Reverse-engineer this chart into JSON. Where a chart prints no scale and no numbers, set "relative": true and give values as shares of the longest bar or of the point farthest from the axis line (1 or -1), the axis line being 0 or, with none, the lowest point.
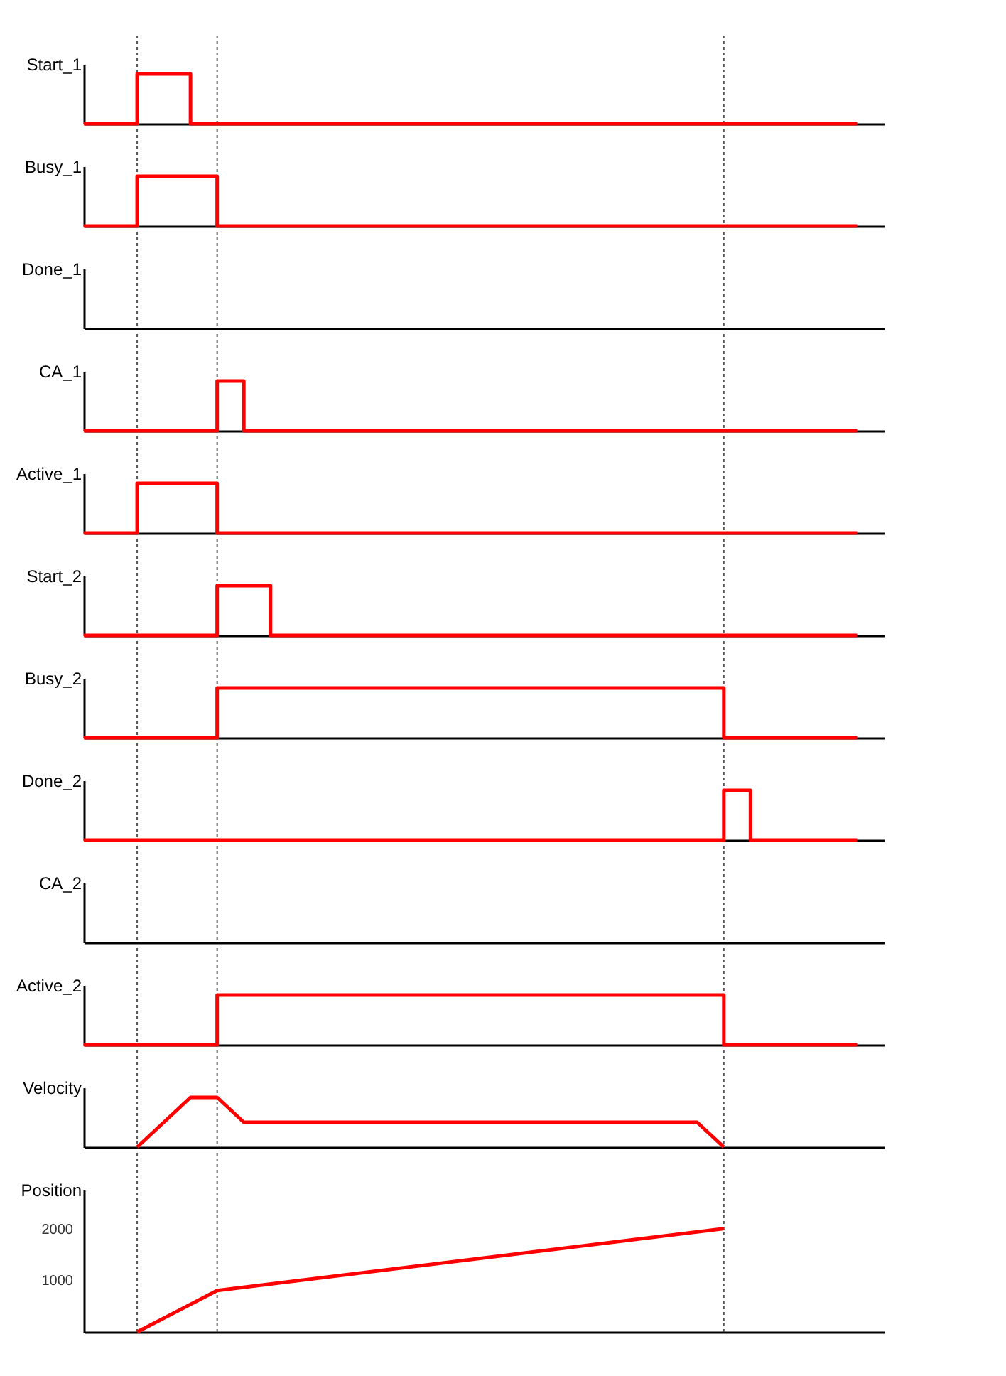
{
  "chart_data": [
    {
      "type": "step",
      "ylabel": "Start_1",
      "relative": true,
      "tick_labels": false,
      "grid": "x",
      "categories": [
        null,
        null,
        null,
        null,
        null,
        null,
        null,
        null,
        null,
        null,
        null,
        null,
        null,
        null,
        null,
        null,
        null,
        null,
        null,
        null,
        null,
        null,
        null,
        null,
        null,
        null,
        null,
        null,
        null,
        null
      ],
      "color": "#ff0000",
      "values": [
        0,
        0,
        1,
        1,
        0,
        0,
        0,
        0,
        0,
        0,
        0,
        0,
        0,
        0,
        0,
        0,
        0,
        0,
        0,
        0,
        0,
        0,
        0,
        0,
        0,
        0,
        0,
        0,
        0,
        0
      ]
    },
    {
      "type": "step",
      "ylabel": "Busy_1",
      "relative": true,
      "tick_labels": false,
      "grid": "x",
      "categories": [
        null,
        null,
        null,
        null,
        null,
        null,
        null,
        null,
        null,
        null,
        null,
        null,
        null,
        null,
        null,
        null,
        null,
        null,
        null,
        null,
        null,
        null,
        null,
        null,
        null,
        null,
        null,
        null,
        null,
        null
      ],
      "color": "#ff0000",
      "values": [
        0,
        0,
        1,
        1,
        1,
        0,
        0,
        0,
        0,
        0,
        0,
        0,
        0,
        0,
        0,
        0,
        0,
        0,
        0,
        0,
        0,
        0,
        0,
        0,
        0,
        0,
        0,
        0,
        0,
        0
      ]
    },
    {
      "type": "other",
      "ylabel": "Done_1",
      "categories": [
        null,
        null,
        null,
        null,
        null,
        null,
        null,
        null,
        null,
        null,
        null,
        null,
        null,
        null,
        null,
        null,
        null,
        null,
        null,
        null,
        null,
        null,
        null,
        null,
        null,
        null,
        null,
        null,
        null,
        null
      ]
    },
    {
      "type": "step",
      "ylabel": "CA_1",
      "relative": true,
      "tick_labels": false,
      "grid": "x",
      "categories": [
        null,
        null,
        null,
        null,
        null,
        null,
        null,
        null,
        null,
        null,
        null,
        null,
        null,
        null,
        null,
        null,
        null,
        null,
        null,
        null,
        null,
        null,
        null,
        null,
        null,
        null,
        null,
        null,
        null,
        null
      ],
      "color": "#ff0000",
      "values": [
        0,
        0,
        0,
        0,
        0,
        1,
        0,
        0,
        0,
        0,
        0,
        0,
        0,
        0,
        0,
        0,
        0,
        0,
        0,
        0,
        0,
        0,
        0,
        0,
        0,
        0,
        0,
        0,
        0,
        0
      ]
    },
    {
      "type": "step",
      "ylabel": "Active_1",
      "relative": true,
      "tick_labels": false,
      "grid": "x",
      "categories": [
        null,
        null,
        null,
        null,
        null,
        null,
        null,
        null,
        null,
        null,
        null,
        null,
        null,
        null,
        null,
        null,
        null,
        null,
        null,
        null,
        null,
        null,
        null,
        null,
        null,
        null,
        null,
        null,
        null,
        null
      ],
      "color": "#ff0000",
      "values": [
        0,
        0,
        1,
        1,
        1,
        0,
        0,
        0,
        0,
        0,
        0,
        0,
        0,
        0,
        0,
        0,
        0,
        0,
        0,
        0,
        0,
        0,
        0,
        0,
        0,
        0,
        0,
        0,
        0,
        0
      ]
    },
    {
      "type": "step",
      "ylabel": "Start_2",
      "relative": true,
      "tick_labels": false,
      "grid": "x",
      "categories": [
        null,
        null,
        null,
        null,
        null,
        null,
        null,
        null,
        null,
        null,
        null,
        null,
        null,
        null,
        null,
        null,
        null,
        null,
        null,
        null,
        null,
        null,
        null,
        null,
        null,
        null,
        null,
        null,
        null,
        null
      ],
      "color": "#ff0000",
      "values": [
        0,
        0,
        0,
        0,
        0,
        1,
        1,
        0,
        0,
        0,
        0,
        0,
        0,
        0,
        0,
        0,
        0,
        0,
        0,
        0,
        0,
        0,
        0,
        0,
        0,
        0,
        0,
        0,
        0,
        0
      ]
    },
    {
      "type": "step",
      "ylabel": "Busy_2",
      "relative": true,
      "tick_labels": false,
      "grid": "x",
      "categories": [
        null,
        null,
        null,
        null,
        null,
        null,
        null,
        null,
        null,
        null,
        null,
        null,
        null,
        null,
        null,
        null,
        null,
        null,
        null,
        null,
        null,
        null,
        null,
        null,
        null,
        null,
        null,
        null,
        null,
        null
      ],
      "color": "#ff0000",
      "values": [
        0,
        0,
        0,
        0,
        0,
        1,
        1,
        1,
        1,
        1,
        1,
        1,
        1,
        1,
        1,
        1,
        1,
        1,
        1,
        1,
        1,
        1,
        1,
        1,
        0,
        0,
        0,
        0,
        0,
        0
      ]
    },
    {
      "type": "step",
      "ylabel": "Done_2",
      "relative": true,
      "tick_labels": false,
      "grid": "x",
      "categories": [
        null,
        null,
        null,
        null,
        null,
        null,
        null,
        null,
        null,
        null,
        null,
        null,
        null,
        null,
        null,
        null,
        null,
        null,
        null,
        null,
        null,
        null,
        null,
        null,
        null,
        null,
        null,
        null,
        null,
        null
      ],
      "color": "#ff0000",
      "values": [
        0,
        0,
        0,
        0,
        0,
        0,
        0,
        0,
        0,
        0,
        0,
        0,
        0,
        0,
        0,
        0,
        0,
        0,
        0,
        0,
        0,
        0,
        0,
        0,
        1,
        0,
        0,
        0,
        0,
        0
      ]
    },
    {
      "type": "other",
      "ylabel": "CA_2",
      "categories": [
        null,
        null,
        null,
        null,
        null,
        null,
        null,
        null,
        null,
        null,
        null,
        null,
        null,
        null,
        null,
        null,
        null,
        null,
        null,
        null,
        null,
        null,
        null,
        null,
        null,
        null,
        null,
        null,
        null,
        null
      ]
    },
    {
      "type": "step",
      "ylabel": "Active_2",
      "relative": true,
      "tick_labels": false,
      "grid": "x",
      "categories": [
        null,
        null,
        null,
        null,
        null,
        null,
        null,
        null,
        null,
        null,
        null,
        null,
        null,
        null,
        null,
        null,
        null,
        null,
        null,
        null,
        null,
        null,
        null,
        null,
        null,
        null,
        null,
        null,
        null,
        null
      ],
      "color": "#ff0000",
      "values": [
        0,
        0,
        0,
        0,
        0,
        1,
        1,
        1,
        1,
        1,
        1,
        1,
        1,
        1,
        1,
        1,
        1,
        1,
        1,
        1,
        1,
        1,
        1,
        1,
        0,
        0,
        0,
        0,
        0,
        0
      ]
    },
    {
      "type": "line",
      "ylabel": "Velocity",
      "relative": true,
      "tick_labels": false,
      "grid": "x",
      "categories": [
        null,
        null,
        null,
        null,
        null,
        null,
        null,
        null,
        null,
        null,
        null,
        null,
        null,
        null,
        null,
        null,
        null,
        null,
        null,
        null,
        null,
        null,
        null,
        null,
        null,
        null,
        null,
        null,
        null,
        null
      ],
      "color": "#ff0000",
      "values": [
        null,
        null,
        0,
        0.5,
        1,
        1,
        0.5,
        0.5,
        0.5,
        0.5,
        0.5,
        0.5,
        0.5,
        0.5,
        0.5,
        0.5,
        0.5,
        0.5,
        0.5,
        0.5,
        0.5,
        0.5,
        0.5,
        0.5,
        0,
        null,
        null,
        null,
        null,
        null
      ]
    },
    {
      "type": "line",
      "ylabel": "Position",
      "tick_labels": "y",
      "grid": "x",
      "ylim": [
        0,
        2750
      ],
      "yticks": [
        1000,
        2000
      ],
      "categories": [
        null,
        null,
        null,
        null,
        null,
        null,
        null,
        null,
        null,
        null,
        null,
        null,
        null,
        null,
        null,
        null,
        null,
        null,
        null,
        null,
        null,
        null,
        null,
        null,
        null,
        null,
        null,
        null,
        null,
        null
      ],
      "color": "#ff0000",
      "values": [
        null,
        null,
        0,
        null,
        null,
        800,
        null,
        null,
        null,
        null,
        null,
        null,
        null,
        null,
        null,
        null,
        null,
        null,
        null,
        null,
        null,
        null,
        null,
        null,
        2000,
        null,
        null,
        null,
        null,
        null
      ]
    }
  ]
}
